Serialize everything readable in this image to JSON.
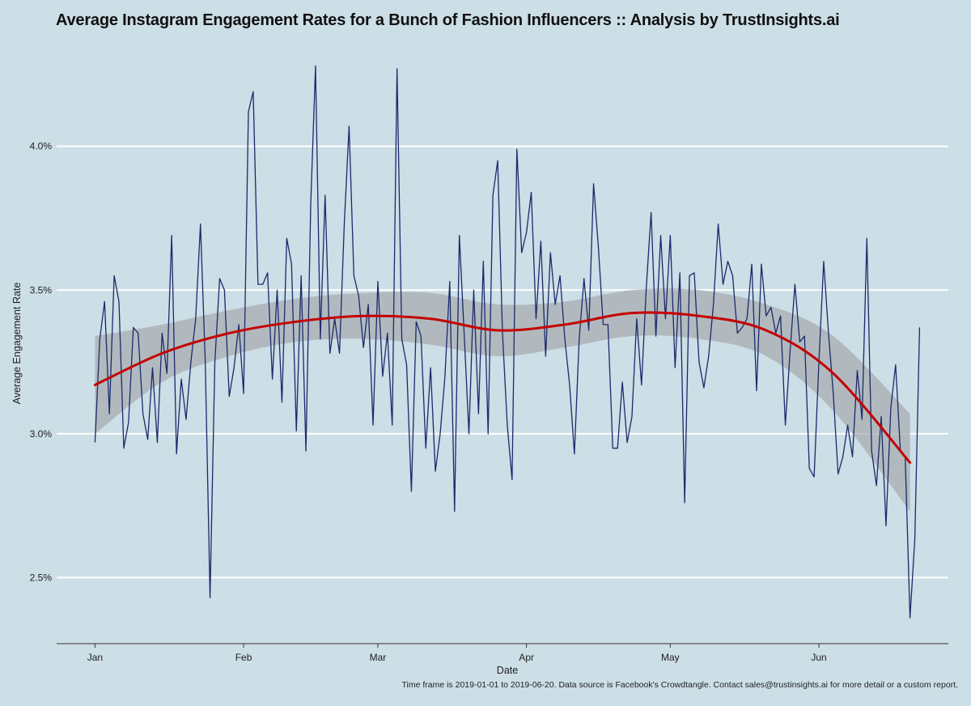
{
  "title": "Average Instagram Engagement Rates for a Bunch of Fashion Influencers :: Analysis by TrustInsights.ai",
  "caption": "Time frame is 2019-01-01 to 2019-06-20. Data source is Facebook's Crowdtangle. Contact sales@trustinsights.ai for more detail or a custom report.",
  "chart_data": {
    "type": "line",
    "xlabel": "Date",
    "ylabel": "Average Engagement Rate",
    "x_start": "2019-01-01",
    "x_end": "2019-06-20",
    "xlim": [
      "2018-12-24",
      "2019-06-28"
    ],
    "ylim": [
      2.27,
      4.34
    ],
    "yticks": [
      2.5,
      3.0,
      3.5,
      4.0
    ],
    "ytick_labels": [
      "2.5%",
      "3.0%",
      "3.5%",
      "4.0%"
    ],
    "xticks": [
      "2019-01-01",
      "2019-02-01",
      "2019-03-01",
      "2019-04-01",
      "2019-05-01",
      "2019-06-01"
    ],
    "xtick_labels": [
      "Jan",
      "Feb",
      "Mar",
      "Apr",
      "May",
      "Jun"
    ],
    "grid": "horizontal",
    "colors": {
      "series": "#1a2a6c",
      "smooth": "#c40000",
      "band": "#a8acb0",
      "background": "#ccdee6",
      "grid": "#ffffff"
    },
    "series": [
      {
        "values": [
          2.97,
          3.33,
          3.46,
          3.07,
          3.55,
          3.46,
          2.95,
          3.04,
          3.37,
          3.35,
          3.07,
          2.98,
          3.23,
          2.97,
          3.35,
          3.21,
          3.69,
          2.93,
          3.19,
          3.05,
          3.25,
          3.4,
          3.73,
          3.25,
          2.43,
          3.25,
          3.54,
          3.5,
          3.13,
          3.23,
          3.38,
          3.14,
          4.12,
          4.19,
          3.52,
          3.52,
          3.56,
          3.19,
          3.5,
          3.11,
          3.68,
          3.59,
          3.01,
          3.55,
          2.94,
          3.8,
          4.28,
          3.33,
          3.83,
          3.28,
          3.4,
          3.28,
          3.73,
          4.07,
          3.55,
          3.48,
          3.3,
          3.45,
          3.03,
          3.53,
          3.2,
          3.35,
          3.03,
          4.27,
          3.33,
          3.24,
          2.8,
          3.39,
          3.34,
          2.95,
          3.23,
          2.87,
          3.0,
          3.2,
          3.53,
          2.73,
          3.69,
          3.35,
          3.0,
          3.5,
          3.07,
          3.6,
          3.0,
          3.83,
          3.95,
          3.35,
          3.03,
          2.84,
          3.99,
          3.63,
          3.7,
          3.84,
          3.4,
          3.67,
          3.27,
          3.63,
          3.45,
          3.55,
          3.33,
          3.17,
          2.93,
          3.33,
          3.54,
          3.36,
          3.87,
          3.65,
          3.38,
          3.38,
          2.95,
          2.95,
          3.18,
          2.97,
          3.06,
          3.4,
          3.17,
          3.51,
          3.77,
          3.34,
          3.69,
          3.4,
          3.69,
          3.23,
          3.56,
          2.76,
          3.55,
          3.56,
          3.25,
          3.16,
          3.27,
          3.45,
          3.73,
          3.52,
          3.6,
          3.55,
          3.35,
          3.37,
          3.4,
          3.59,
          3.15,
          3.59,
          3.41,
          3.44,
          3.35,
          3.41,
          3.03,
          3.29,
          3.52,
          3.32,
          3.34,
          2.88,
          2.85,
          3.25,
          3.6,
          3.35,
          3.14,
          2.86,
          2.92,
          3.03,
          2.92,
          3.22,
          3.05,
          3.68,
          2.94,
          2.82,
          3.06,
          2.68,
          3.09,
          3.24,
          2.94,
          2.92,
          2.36,
          2.63,
          3.37
        ]
      }
    ],
    "smooth": {
      "dates": [
        "2019-01-01",
        "2019-01-15",
        "2019-01-29",
        "2019-02-12",
        "2019-02-26",
        "2019-03-12",
        "2019-03-26",
        "2019-04-09",
        "2019-04-23",
        "2019-05-07",
        "2019-05-21",
        "2019-06-04",
        "2019-06-20"
      ],
      "fit": [
        3.17,
        3.28,
        3.35,
        3.39,
        3.41,
        3.4,
        3.36,
        3.38,
        3.42,
        3.41,
        3.36,
        3.21,
        2.9
      ],
      "lower": [
        3.0,
        3.18,
        3.27,
        3.32,
        3.33,
        3.31,
        3.27,
        3.3,
        3.34,
        3.33,
        3.27,
        3.08,
        2.73
      ],
      "upper": [
        3.34,
        3.38,
        3.43,
        3.47,
        3.49,
        3.49,
        3.45,
        3.46,
        3.5,
        3.5,
        3.45,
        3.34,
        3.07
      ]
    }
  }
}
